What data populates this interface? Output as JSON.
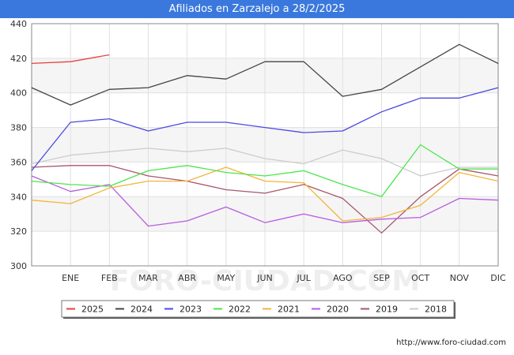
{
  "chart_data": {
    "type": "line",
    "title": "Afiliados en Zarzalejo a 28/2/2025",
    "categories": [
      "",
      "ENE",
      "FEB",
      "MAR",
      "ABR",
      "MAY",
      "JUN",
      "JUL",
      "AGO",
      "SEP",
      "OCT",
      "NOV",
      "DIC"
    ],
    "ylim": [
      300,
      440
    ],
    "yticks": [
      300,
      320,
      340,
      360,
      380,
      400,
      420,
      440
    ],
    "grid": true,
    "legend_position": "bottom",
    "series": [
      {
        "name": "2025",
        "color": "#e8423a",
        "values": [
          417,
          418,
          422,
          null,
          null,
          null,
          null,
          null,
          null,
          null,
          null,
          null,
          null
        ]
      },
      {
        "name": "2024",
        "color": "#444444",
        "values": [
          403,
          393,
          402,
          403,
          410,
          408,
          418,
          418,
          398,
          402,
          415,
          428,
          417
        ]
      },
      {
        "name": "2023",
        "color": "#4a4ae0",
        "values": [
          355,
          383,
          385,
          378,
          383,
          383,
          380,
          377,
          378,
          389,
          397,
          397,
          403
        ]
      },
      {
        "name": "2022",
        "color": "#4ce64c",
        "values": [
          349,
          347,
          346,
          355,
          358,
          354,
          352,
          355,
          347,
          340,
          370,
          356,
          356
        ]
      },
      {
        "name": "2021",
        "color": "#f2b53a",
        "values": [
          338,
          336,
          345,
          349,
          349,
          357,
          349,
          348,
          326,
          328,
          335,
          354,
          349
        ]
      },
      {
        "name": "2020",
        "color": "#b75be0",
        "values": [
          352,
          343,
          347,
          323,
          326,
          334,
          325,
          330,
          325,
          327,
          328,
          339,
          338
        ]
      },
      {
        "name": "2019",
        "color": "#a8566a",
        "values": [
          357,
          358,
          358,
          352,
          349,
          344,
          342,
          347,
          339,
          319,
          340,
          356,
          352
        ]
      },
      {
        "name": "2018",
        "color": "#cccccc",
        "values": [
          359,
          364,
          366,
          368,
          366,
          368,
          362,
          359,
          367,
          362,
          352,
          357,
          357
        ]
      }
    ]
  },
  "footer": {
    "url": "http://www.foro-ciudad.com"
  },
  "watermark": "FORO-CIUDAD.COM"
}
